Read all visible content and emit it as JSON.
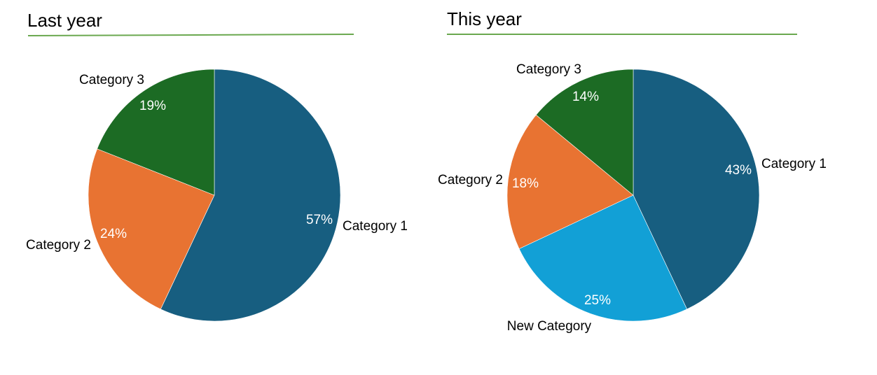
{
  "chart_data": [
    {
      "type": "pie",
      "title": "Last year",
      "categories": [
        "Category 1",
        "Category 2",
        "Category 3"
      ],
      "values": [
        57,
        24,
        19
      ],
      "value_labels": [
        "57%",
        "24%",
        "19%"
      ],
      "colors": [
        "#175e80",
        "#e87332",
        "#1c6b24"
      ],
      "start_angle_deg": 0,
      "direction": "clockwise",
      "title_underline_color": "#6aa84f"
    },
    {
      "type": "pie",
      "title": "This year",
      "categories": [
        "Category 1",
        "New Category",
        "Category 2",
        "Category 3"
      ],
      "values": [
        43,
        25,
        18,
        14
      ],
      "value_labels": [
        "43%",
        "25%",
        "18%",
        "14%"
      ],
      "colors": [
        "#175e80",
        "#12a0d6",
        "#e87332",
        "#1c6b24"
      ],
      "start_angle_deg": 0,
      "direction": "clockwise",
      "title_underline_color": "#6aa84f"
    }
  ]
}
